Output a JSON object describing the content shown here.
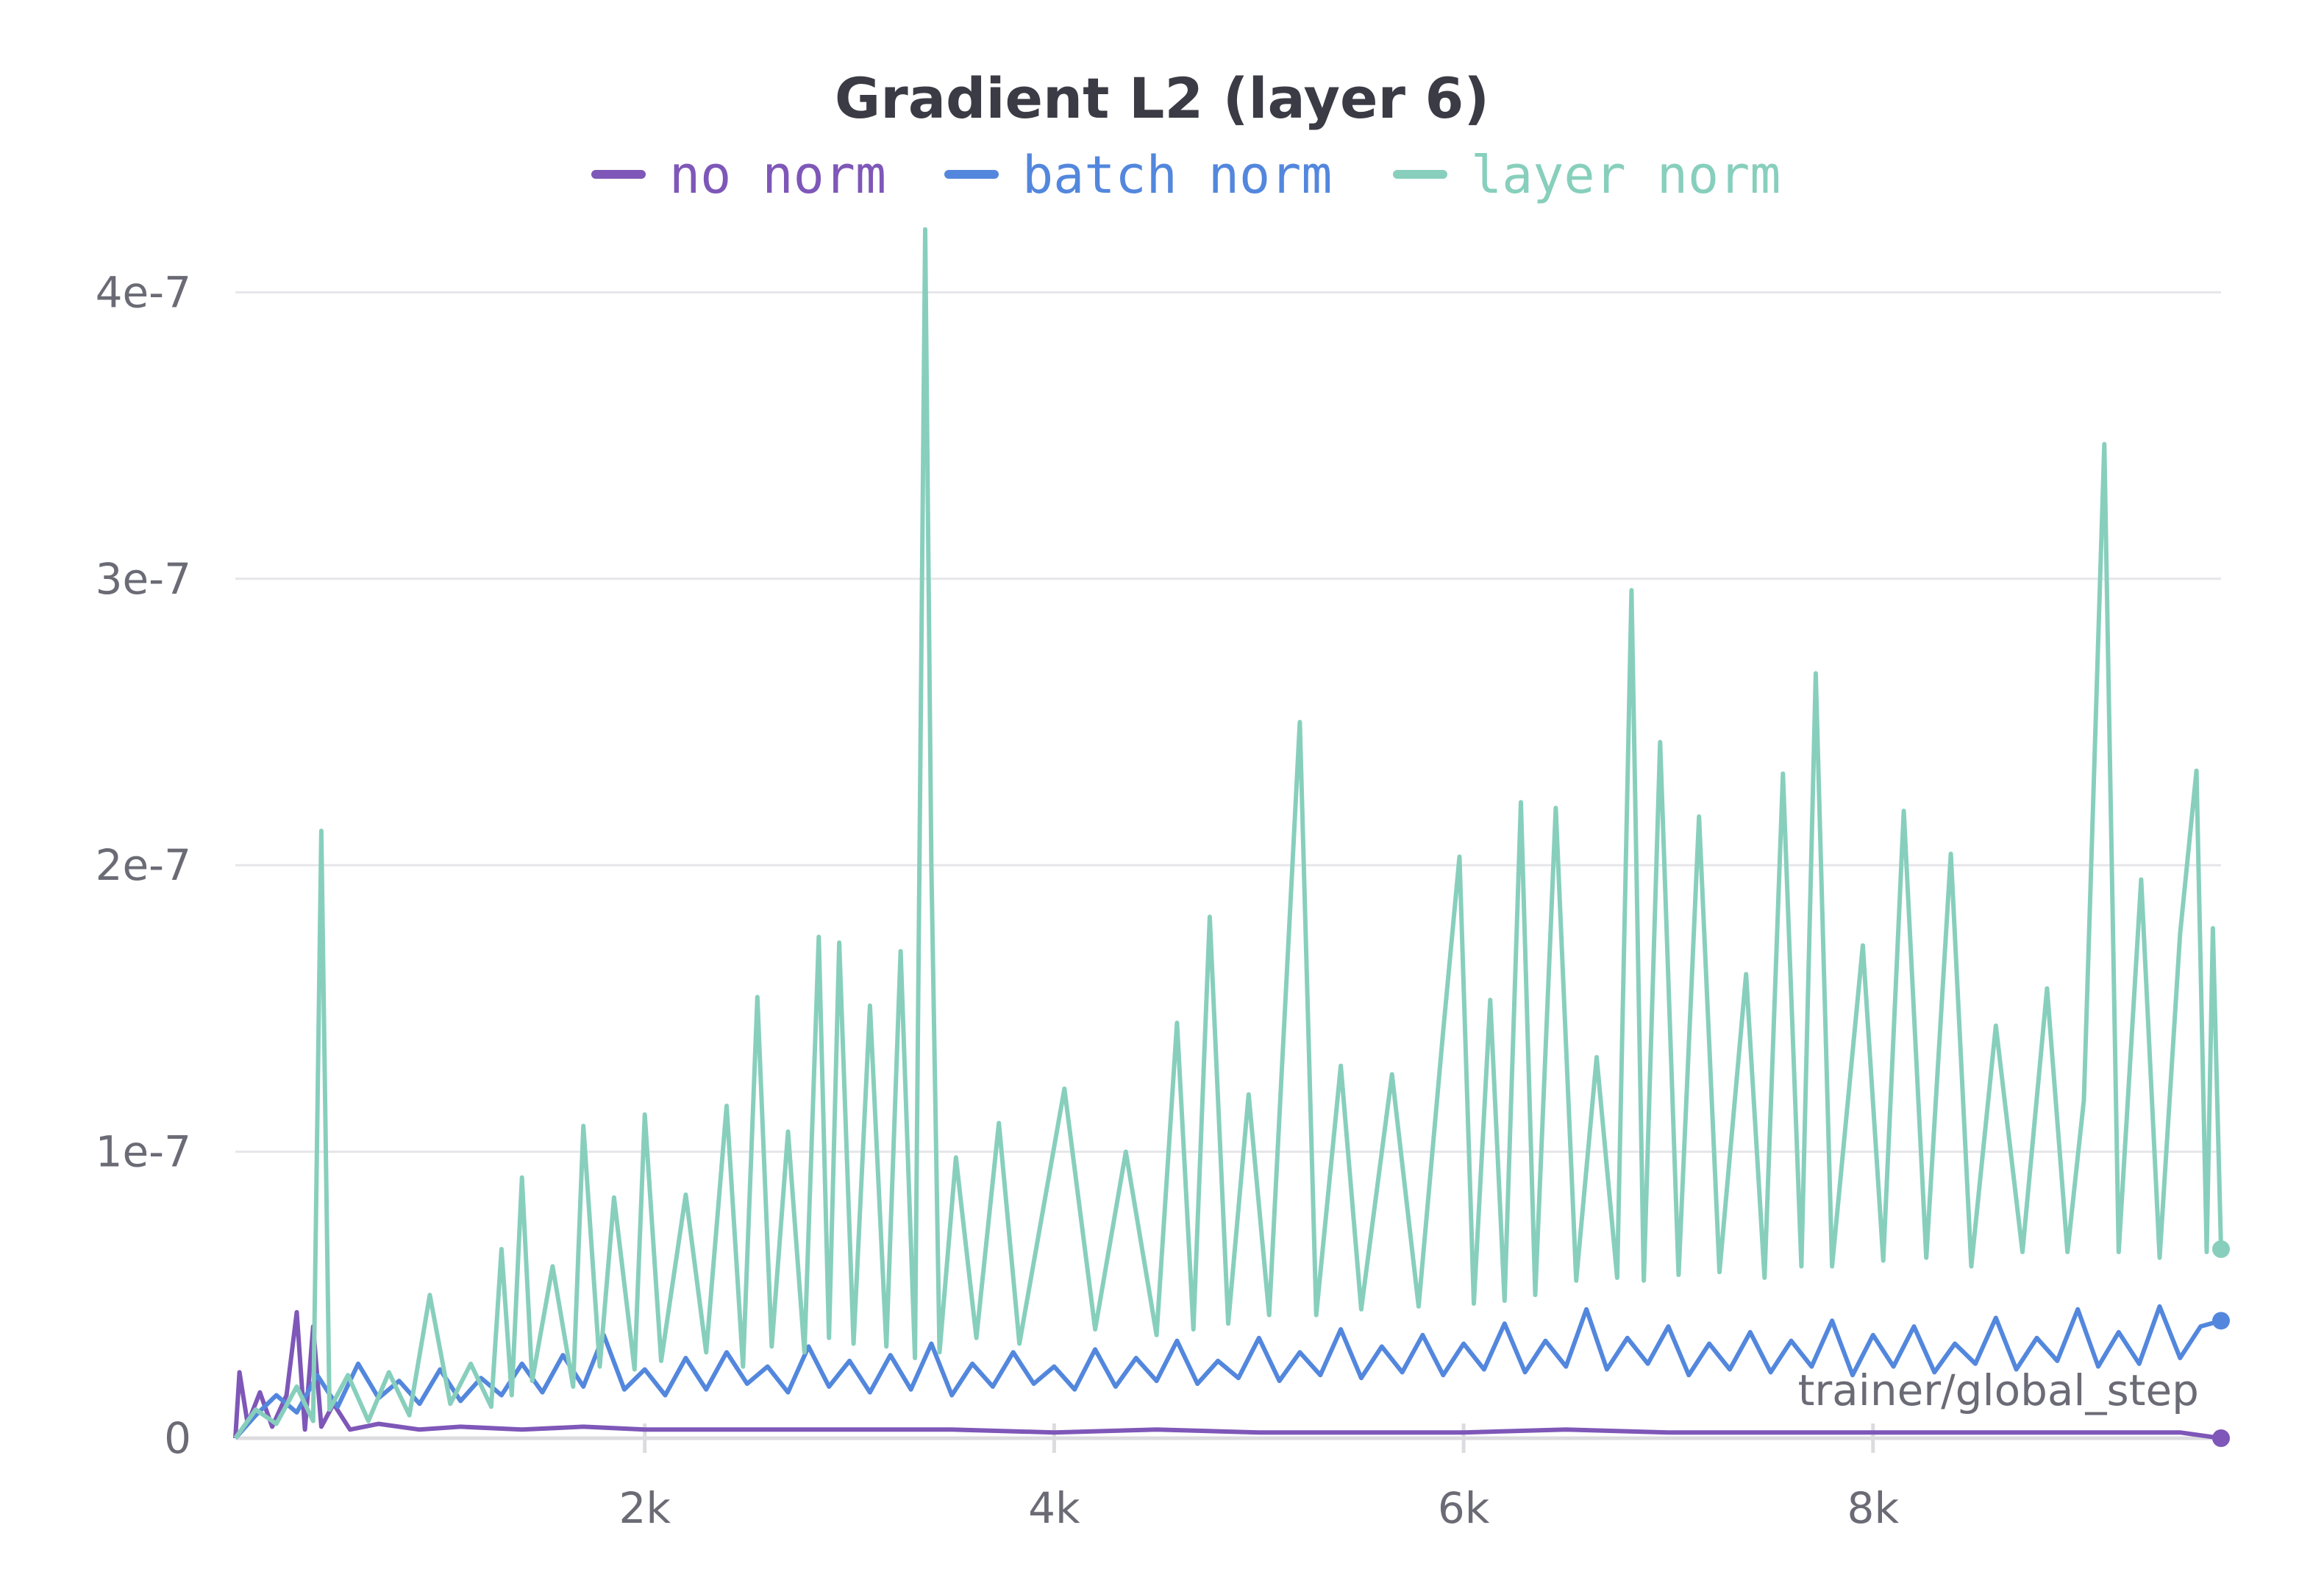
{
  "chart_data": {
    "type": "line",
    "title": "Gradient L2 (layer 6)",
    "xlabel": "trainer/global_step",
    "ylabel": "",
    "xlim": [
      0,
      9700
    ],
    "ylim": [
      0,
      4.25e-07
    ],
    "x_ticks": [
      {
        "value": 2000,
        "label": "2k"
      },
      {
        "value": 4000,
        "label": "4k"
      },
      {
        "value": 6000,
        "label": "6k"
      },
      {
        "value": 8000,
        "label": "8k"
      }
    ],
    "y_ticks": [
      {
        "value": 0,
        "label": "0"
      },
      {
        "value": 1e-07,
        "label": "1e-7"
      },
      {
        "value": 2e-07,
        "label": "2e-7"
      },
      {
        "value": 3e-07,
        "label": "3e-7"
      },
      {
        "value": 4e-07,
        "label": "4e-7"
      }
    ],
    "grid": true,
    "legend": "top-center",
    "series": [
      {
        "name": "no norm",
        "color": "#7e57b8",
        "last_value": 0,
        "points": [
          [
            0,
            0
          ],
          [
            20,
            2.3e-08
          ],
          [
            60,
            5e-09
          ],
          [
            120,
            1.6e-08
          ],
          [
            180,
            4e-09
          ],
          [
            250,
            1.5e-08
          ],
          [
            300,
            4.4e-08
          ],
          [
            340,
            3e-09
          ],
          [
            380,
            3.9e-08
          ],
          [
            420,
            4e-09
          ],
          [
            480,
            1.2e-08
          ],
          [
            560,
            3e-09
          ],
          [
            700,
            5e-09
          ],
          [
            900,
            3e-09
          ],
          [
            1100,
            4e-09
          ],
          [
            1400,
            3e-09
          ],
          [
            1700,
            4e-09
          ],
          [
            2000,
            3e-09
          ],
          [
            2500,
            3e-09
          ],
          [
            3000,
            3e-09
          ],
          [
            3500,
            3e-09
          ],
          [
            4000,
            2e-09
          ],
          [
            4500,
            3e-09
          ],
          [
            5000,
            2e-09
          ],
          [
            5500,
            2e-09
          ],
          [
            6000,
            2e-09
          ],
          [
            6500,
            3e-09
          ],
          [
            7000,
            2e-09
          ],
          [
            7500,
            2e-09
          ],
          [
            8000,
            2e-09
          ],
          [
            8500,
            2e-09
          ],
          [
            9000,
            2e-09
          ],
          [
            9500,
            2e-09
          ],
          [
            9700,
            0
          ]
        ]
      },
      {
        "name": "batch norm",
        "color": "#5387dd",
        "last_value": 4.1e-08,
        "points": [
          [
            0,
            0
          ],
          [
            100,
            8e-09
          ],
          [
            200,
            1.5e-08
          ],
          [
            300,
            9e-09
          ],
          [
            400,
            2.2e-08
          ],
          [
            500,
            1.1e-08
          ],
          [
            600,
            2.6e-08
          ],
          [
            700,
            1.4e-08
          ],
          [
            800,
            2e-08
          ],
          [
            900,
            1.2e-08
          ],
          [
            1000,
            2.4e-08
          ],
          [
            1100,
            1.3e-08
          ],
          [
            1200,
            2.1e-08
          ],
          [
            1300,
            1.5e-08
          ],
          [
            1400,
            2.6e-08
          ],
          [
            1500,
            1.6e-08
          ],
          [
            1600,
            2.9e-08
          ],
          [
            1700,
            1.8e-08
          ],
          [
            1800,
            3.6e-08
          ],
          [
            1900,
            1.7e-08
          ],
          [
            2000,
            2.4e-08
          ],
          [
            2100,
            1.5e-08
          ],
          [
            2200,
            2.8e-08
          ],
          [
            2300,
            1.7e-08
          ],
          [
            2400,
            3e-08
          ],
          [
            2500,
            1.9e-08
          ],
          [
            2600,
            2.5e-08
          ],
          [
            2700,
            1.6e-08
          ],
          [
            2800,
            3.2e-08
          ],
          [
            2900,
            1.8e-08
          ],
          [
            3000,
            2.7e-08
          ],
          [
            3100,
            1.6e-08
          ],
          [
            3200,
            2.9e-08
          ],
          [
            3300,
            1.7e-08
          ],
          [
            3400,
            3.3e-08
          ],
          [
            3500,
            1.5e-08
          ],
          [
            3600,
            2.6e-08
          ],
          [
            3700,
            1.8e-08
          ],
          [
            3800,
            3e-08
          ],
          [
            3900,
            1.9e-08
          ],
          [
            4000,
            2.5e-08
          ],
          [
            4100,
            1.7e-08
          ],
          [
            4200,
            3.1e-08
          ],
          [
            4300,
            1.8e-08
          ],
          [
            4400,
            2.8e-08
          ],
          [
            4500,
            2e-08
          ],
          [
            4600,
            3.4e-08
          ],
          [
            4700,
            1.9e-08
          ],
          [
            4800,
            2.7e-08
          ],
          [
            4900,
            2.1e-08
          ],
          [
            5000,
            3.5e-08
          ],
          [
            5100,
            2e-08
          ],
          [
            5200,
            3e-08
          ],
          [
            5300,
            2.2e-08
          ],
          [
            5400,
            3.8e-08
          ],
          [
            5500,
            2.1e-08
          ],
          [
            5600,
            3.2e-08
          ],
          [
            5700,
            2.3e-08
          ],
          [
            5800,
            3.6e-08
          ],
          [
            5900,
            2.2e-08
          ],
          [
            6000,
            3.3e-08
          ],
          [
            6100,
            2.4e-08
          ],
          [
            6200,
            4e-08
          ],
          [
            6300,
            2.3e-08
          ],
          [
            6400,
            3.4e-08
          ],
          [
            6500,
            2.5e-08
          ],
          [
            6600,
            4.5e-08
          ],
          [
            6700,
            2.4e-08
          ],
          [
            6800,
            3.5e-08
          ],
          [
            6900,
            2.6e-08
          ],
          [
            7000,
            3.9e-08
          ],
          [
            7100,
            2.2e-08
          ],
          [
            7200,
            3.3e-08
          ],
          [
            7300,
            2.4e-08
          ],
          [
            7400,
            3.7e-08
          ],
          [
            7500,
            2.3e-08
          ],
          [
            7600,
            3.4e-08
          ],
          [
            7700,
            2.5e-08
          ],
          [
            7800,
            4.1e-08
          ],
          [
            7900,
            2.2e-08
          ],
          [
            8000,
            3.6e-08
          ],
          [
            8100,
            2.5e-08
          ],
          [
            8200,
            3.9e-08
          ],
          [
            8300,
            2.3e-08
          ],
          [
            8400,
            3.3e-08
          ],
          [
            8500,
            2.6e-08
          ],
          [
            8600,
            4.2e-08
          ],
          [
            8700,
            2.4e-08
          ],
          [
            8800,
            3.5e-08
          ],
          [
            8900,
            2.7e-08
          ],
          [
            9000,
            4.5e-08
          ],
          [
            9100,
            2.5e-08
          ],
          [
            9200,
            3.7e-08
          ],
          [
            9300,
            2.6e-08
          ],
          [
            9400,
            4.6e-08
          ],
          [
            9500,
            2.8e-08
          ],
          [
            9600,
            3.9e-08
          ],
          [
            9700,
            4.1e-08
          ]
        ]
      },
      {
        "name": "layer norm",
        "color": "#87cfbc",
        "last_value": 6.6e-08,
        "points": [
          [
            0,
            0
          ],
          [
            100,
            1e-08
          ],
          [
            200,
            5e-09
          ],
          [
            300,
            1.8e-08
          ],
          [
            380,
            6e-09
          ],
          [
            420,
            2.12e-07
          ],
          [
            460,
            1e-08
          ],
          [
            550,
            2.2e-08
          ],
          [
            650,
            6e-09
          ],
          [
            750,
            2.3e-08
          ],
          [
            850,
            8e-09
          ],
          [
            950,
            5e-08
          ],
          [
            1050,
            1.2e-08
          ],
          [
            1150,
            2.6e-08
          ],
          [
            1250,
            1.1e-08
          ],
          [
            1300,
            6.6e-08
          ],
          [
            1350,
            1.5e-08
          ],
          [
            1400,
            9.1e-08
          ],
          [
            1450,
            2e-08
          ],
          [
            1550,
            6e-08
          ],
          [
            1650,
            1.8e-08
          ],
          [
            1700,
            1.09e-07
          ],
          [
            1780,
            2.5e-08
          ],
          [
            1850,
            8.4e-08
          ],
          [
            1950,
            2.4e-08
          ],
          [
            2000,
            1.13e-07
          ],
          [
            2080,
            2.7e-08
          ],
          [
            2200,
            8.5e-08
          ],
          [
            2300,
            3e-08
          ],
          [
            2400,
            1.16e-07
          ],
          [
            2480,
            2.5e-08
          ],
          [
            2550,
            1.54e-07
          ],
          [
            2620,
            3.2e-08
          ],
          [
            2700,
            1.07e-07
          ],
          [
            2780,
            3e-08
          ],
          [
            2850,
            1.75e-07
          ],
          [
            2900,
            3.5e-08
          ],
          [
            2950,
            1.73e-07
          ],
          [
            3020,
            3.3e-08
          ],
          [
            3100,
            1.51e-07
          ],
          [
            3180,
            3.2e-08
          ],
          [
            3250,
            1.7e-07
          ],
          [
            3320,
            2.8e-08
          ],
          [
            3370,
            4.22e-07
          ],
          [
            3400,
            2e-07
          ],
          [
            3440,
            3e-08
          ],
          [
            3520,
            9.8e-08
          ],
          [
            3620,
            3.5e-08
          ],
          [
            3730,
            1.1e-07
          ],
          [
            3830,
            3.3e-08
          ],
          [
            4050,
            1.22e-07
          ],
          [
            4200,
            3.8e-08
          ],
          [
            4350,
            1e-07
          ],
          [
            4500,
            3.6e-08
          ],
          [
            4600,
            1.45e-07
          ],
          [
            4680,
            3.8e-08
          ],
          [
            4760,
            1.82e-07
          ],
          [
            4850,
            4e-08
          ],
          [
            4950,
            1.2e-07
          ],
          [
            5050,
            4.3e-08
          ],
          [
            5200,
            2.5e-07
          ],
          [
            5280,
            4.3e-08
          ],
          [
            5400,
            1.3e-07
          ],
          [
            5500,
            4.5e-08
          ],
          [
            5650,
            1.27e-07
          ],
          [
            5780,
            4.6e-08
          ],
          [
            5900,
            1.42e-07
          ],
          [
            5980,
            2.03e-07
          ],
          [
            6050,
            4.7e-08
          ],
          [
            6130,
            1.53e-07
          ],
          [
            6200,
            4.8e-08
          ],
          [
            6280,
            2.22e-07
          ],
          [
            6350,
            5e-08
          ],
          [
            6450,
            2.2e-07
          ],
          [
            6550,
            5.5e-08
          ],
          [
            6650,
            1.33e-07
          ],
          [
            6750,
            5.6e-08
          ],
          [
            6820,
            2.96e-07
          ],
          [
            6880,
            5.5e-08
          ],
          [
            6960,
            2.43e-07
          ],
          [
            7050,
            5.7e-08
          ],
          [
            7150,
            2.17e-07
          ],
          [
            7250,
            5.8e-08
          ],
          [
            7380,
            1.62e-07
          ],
          [
            7470,
            5.6e-08
          ],
          [
            7560,
            2.32e-07
          ],
          [
            7650,
            6e-08
          ],
          [
            7720,
            2.67e-07
          ],
          [
            7800,
            6e-08
          ],
          [
            7950,
            1.72e-07
          ],
          [
            8050,
            6.2e-08
          ],
          [
            8150,
            2.19e-07
          ],
          [
            8260,
            6.3e-08
          ],
          [
            8380,
            2.04e-07
          ],
          [
            8480,
            6e-08
          ],
          [
            8600,
            1.44e-07
          ],
          [
            8730,
            6.5e-08
          ],
          [
            8850,
            1.57e-07
          ],
          [
            8950,
            6.5e-08
          ],
          [
            9030,
            1.18e-07
          ],
          [
            9130,
            3.47e-07
          ],
          [
            9200,
            6.5e-08
          ],
          [
            9310,
            1.95e-07
          ],
          [
            9400,
            6.3e-08
          ],
          [
            9500,
            1.76e-07
          ],
          [
            9580,
            2.33e-07
          ],
          [
            9630,
            6.5e-08
          ],
          [
            9660,
            1.78e-07
          ],
          [
            9700,
            6.6e-08
          ]
        ]
      }
    ]
  }
}
